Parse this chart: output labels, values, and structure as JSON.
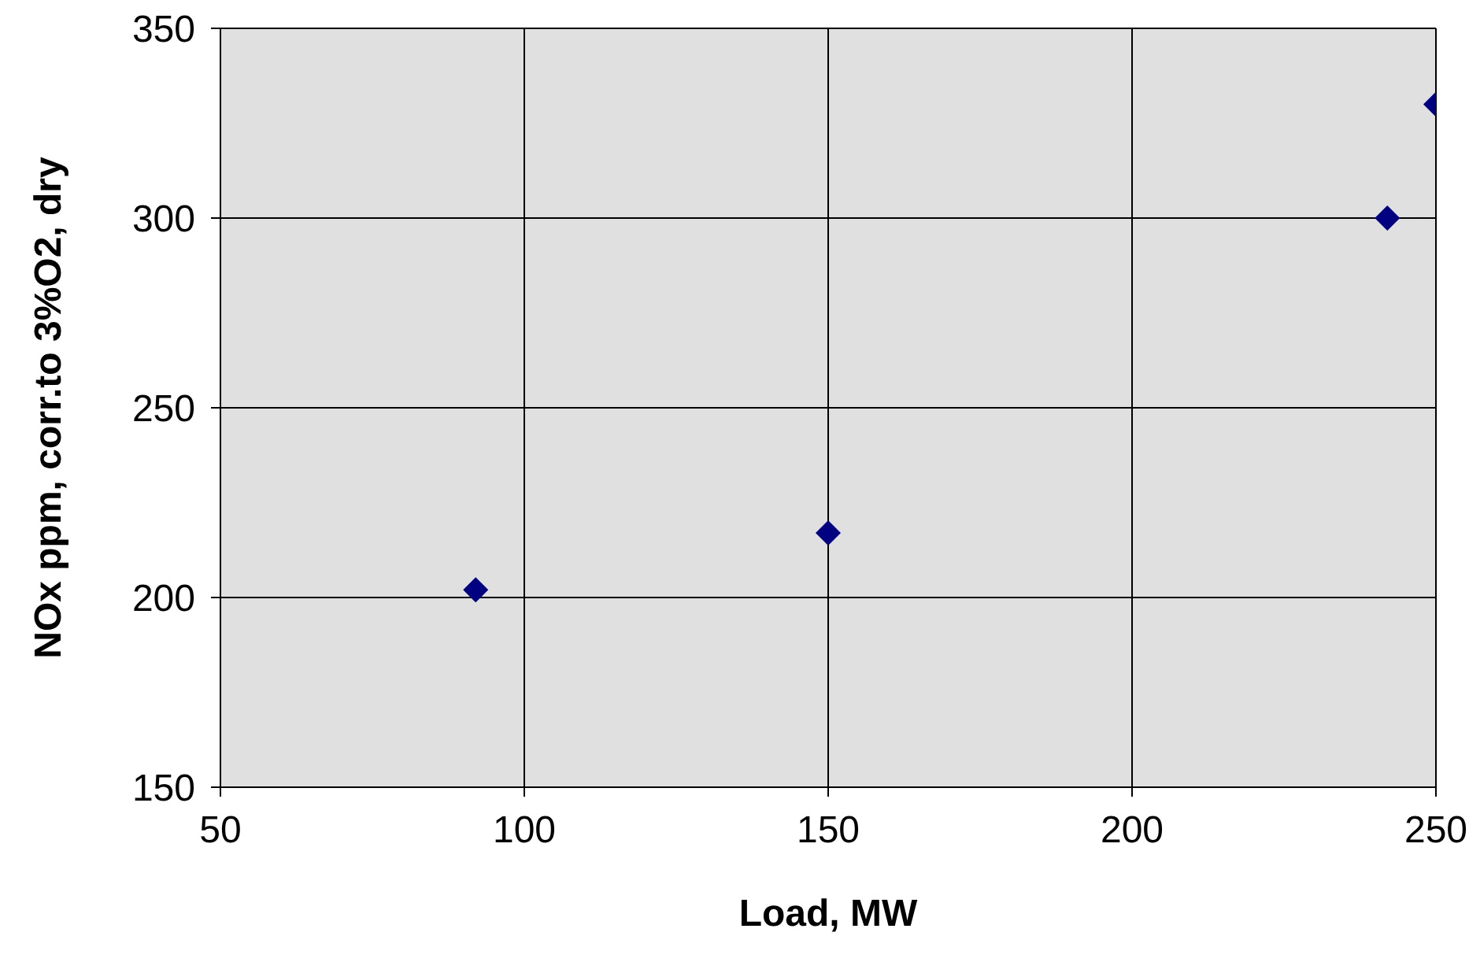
{
  "chart_data": {
    "type": "scatter",
    "xlabel": "Load, MW",
    "ylabel": "NOx ppm, corr.to 3%O2, dry",
    "x": [
      92,
      150,
      242,
      250
    ],
    "series": [
      {
        "color": "#000080",
        "values": [
          202,
          217,
          300,
          330
        ]
      }
    ],
    "xlim": [
      50,
      250
    ],
    "xticks": [
      50,
      100,
      150,
      200,
      250
    ],
    "ylim": [
      150,
      350
    ],
    "yticks": [
      150,
      200,
      250,
      300,
      350
    ],
    "grid": true,
    "marker": "diamond",
    "legend": false
  }
}
